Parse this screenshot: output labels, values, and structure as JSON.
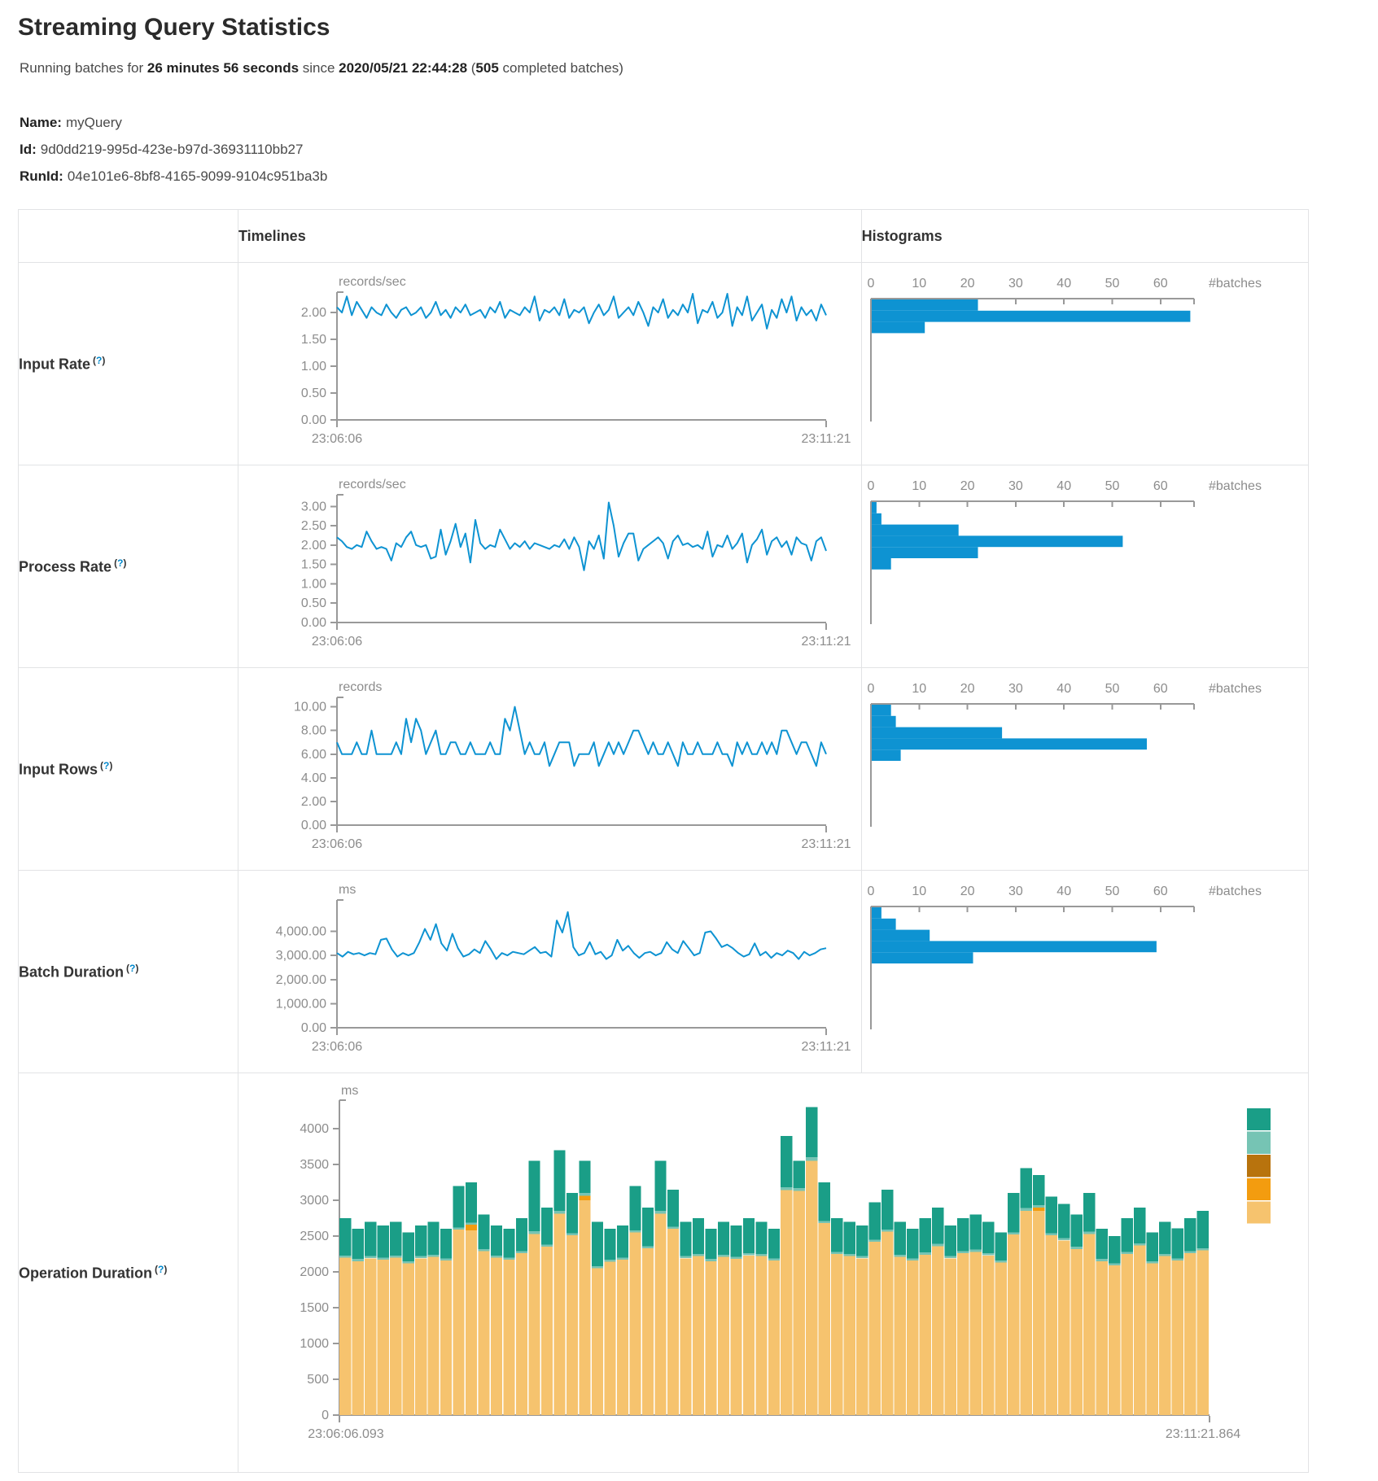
{
  "page": {
    "title": "Streaming Query Statistics"
  },
  "subtitle": {
    "prefix": "Running batches for ",
    "duration": "26 minutes 56 seconds",
    "mid": " since ",
    "timestamp": "2020/05/21 22:44:28",
    "open": " (",
    "count": "505",
    "suffix": " completed batches)"
  },
  "query": {
    "name_label": "Name:",
    "name": "myQuery",
    "id_label": "Id:",
    "id": "9d0dd219-995d-423e-b97d-36931110bb27",
    "run_label": "RunId:",
    "run_id": "04e101e6-8bf8-4165-9099-9104c951ba3b"
  },
  "ui": {
    "help_open": "(",
    "help_q": "?",
    "help_close": ")"
  },
  "table": {
    "timelines_header": "Timelines",
    "histograms_header": "Histograms"
  },
  "colors": {
    "line": "#0e93d2",
    "axis": "#999999",
    "tick_label": "#8c8c8c",
    "green": "#1a9e87",
    "light_teal": "#76c4b4",
    "dark_orange": "#b8730d",
    "orange": "#f39c0f",
    "tan": "#f6c36e"
  },
  "chart_data": [
    {
      "type": "line",
      "row_label": "Input Rate",
      "unit": "records/sec",
      "x_start": "23:06:06",
      "x_end": "23:11:21",
      "y_ticks": [
        0,
        0.5,
        1,
        1.5,
        2
      ],
      "y_tick_labels": [
        "0.00",
        "0.50",
        "1.00",
        "1.50",
        "2.00"
      ],
      "y_max": 2.38,
      "values": [
        2.1,
        2.0,
        2.3,
        1.95,
        2.2,
        2.05,
        1.9,
        2.1,
        2.0,
        1.95,
        2.15,
        2.0,
        1.9,
        2.05,
        2.1,
        1.95,
        2.0,
        2.1,
        1.9,
        2.0,
        2.2,
        1.95,
        2.05,
        1.9,
        2.1,
        2.0,
        2.15,
        1.95,
        2.0,
        2.05,
        1.9,
        2.1,
        2.0,
        2.2,
        1.9,
        2.05,
        2.0,
        1.95,
        2.1,
        2.0,
        2.3,
        1.85,
        2.05,
        2.0,
        2.1,
        1.95,
        2.25,
        1.9,
        2.05,
        2.0,
        2.1,
        1.8,
        2.0,
        2.15,
        1.95,
        2.05,
        2.3,
        1.9,
        2.0,
        2.1,
        1.95,
        2.2,
        2.0,
        1.75,
        2.1,
        2.0,
        2.25,
        1.9,
        2.05,
        1.95,
        2.15,
        2.0,
        2.35,
        1.8,
        2.05,
        2.0,
        2.2,
        1.9,
        2.0,
        2.35,
        1.75,
        2.1,
        1.95,
        2.3,
        1.85,
        2.0,
        2.15,
        1.7,
        2.05,
        1.9,
        2.25,
        2.0,
        2.3,
        1.85,
        2.1,
        1.95,
        2.05,
        1.85,
        2.15,
        1.95
      ],
      "histogram": {
        "ticks": [
          0,
          10,
          20,
          30,
          40,
          50,
          60
        ],
        "axis_label": "#batches",
        "bars": [
          22,
          66,
          11
        ]
      }
    },
    {
      "type": "line",
      "row_label": "Process Rate",
      "unit": "records/sec",
      "x_start": "23:06:06",
      "x_end": "23:11:21",
      "y_ticks": [
        0,
        0.5,
        1,
        1.5,
        2,
        2.5,
        3
      ],
      "y_tick_labels": [
        "0.00",
        "0.50",
        "1.00",
        "1.50",
        "2.00",
        "2.50",
        "3.00"
      ],
      "y_max": 3.3,
      "values": [
        2.2,
        2.1,
        1.95,
        1.9,
        2.0,
        1.95,
        2.35,
        2.1,
        1.9,
        1.95,
        1.9,
        1.6,
        2.05,
        1.95,
        2.2,
        2.35,
        2.0,
        1.95,
        2.0,
        1.65,
        1.7,
        2.4,
        1.75,
        2.1,
        2.55,
        1.95,
        2.3,
        1.55,
        2.65,
        2.05,
        1.9,
        2.0,
        1.95,
        2.4,
        2.15,
        1.9,
        2.05,
        1.95,
        2.1,
        1.9,
        2.05,
        2.0,
        1.95,
        1.9,
        2.0,
        1.95,
        2.15,
        1.9,
        2.2,
        1.95,
        1.35,
        2.1,
        1.9,
        2.25,
        1.65,
        3.1,
        2.5,
        1.7,
        2.05,
        2.3,
        2.3,
        1.6,
        1.9,
        2.0,
        2.1,
        2.2,
        2.05,
        1.65,
        2.1,
        2.25,
        2.0,
        2.05,
        1.95,
        2.0,
        1.9,
        2.35,
        1.7,
        2.0,
        1.95,
        2.25,
        1.9,
        2.05,
        2.3,
        1.55,
        2.0,
        2.15,
        2.4,
        1.75,
        2.1,
        2.2,
        1.95,
        2.1,
        1.75,
        2.2,
        2.05,
        2.0,
        1.6,
        2.1,
        2.2,
        1.85
      ],
      "histogram": {
        "ticks": [
          0,
          10,
          20,
          30,
          40,
          50,
          60
        ],
        "axis_label": "#batches",
        "bars": [
          1,
          2,
          18,
          52,
          22,
          4
        ]
      }
    },
    {
      "type": "line",
      "row_label": "Input Rows",
      "unit": "records",
      "x_start": "23:06:06",
      "x_end": "23:11:21",
      "y_ticks": [
        0,
        2,
        4,
        6,
        8,
        10
      ],
      "y_tick_labels": [
        "0.00",
        "2.00",
        "4.00",
        "6.00",
        "8.00",
        "10.00"
      ],
      "y_max": 10.8,
      "values": [
        7,
        6,
        6,
        6,
        7,
        6,
        6,
        8,
        6,
        6,
        6,
        6,
        7,
        6,
        9,
        7,
        9,
        8,
        6,
        7,
        8,
        6,
        6,
        7,
        7,
        6,
        6,
        7,
        6,
        6,
        6,
        7,
        6,
        6,
        9,
        8,
        10,
        8,
        6,
        7,
        6,
        6,
        7,
        5,
        6,
        7,
        7,
        7,
        5,
        6,
        6,
        6,
        7,
        5,
        6,
        7,
        6,
        7,
        6,
        7,
        8,
        8,
        7,
        6,
        7,
        6,
        6,
        7,
        6,
        5,
        7,
        6,
        6,
        7,
        6,
        6,
        6,
        7,
        6,
        6,
        5,
        7,
        6,
        7,
        6,
        6,
        7,
        6,
        7,
        6,
        8,
        8,
        7,
        6,
        7,
        7,
        6,
        5,
        7,
        6
      ],
      "histogram": {
        "ticks": [
          0,
          10,
          20,
          30,
          40,
          50,
          60
        ],
        "axis_label": "#batches",
        "bars": [
          4,
          5,
          27,
          57,
          6
        ]
      }
    },
    {
      "type": "line",
      "row_label": "Batch Duration",
      "unit": "ms",
      "x_start": "23:06:06",
      "x_end": "23:11:21",
      "y_ticks": [
        0,
        1000,
        2000,
        3000,
        4000
      ],
      "y_tick_labels": [
        "0.00",
        "1,000.00",
        "2,000.00",
        "3,000.00",
        "4,000.00"
      ],
      "y_max": 5300,
      "values": [
        3100,
        2950,
        3150,
        3050,
        3100,
        3000,
        3100,
        3050,
        3650,
        3700,
        3250,
        2950,
        3100,
        3000,
        3100,
        3550,
        4100,
        3650,
        4300,
        3500,
        3200,
        3900,
        3300,
        2950,
        3050,
        3250,
        3100,
        3600,
        3250,
        2850,
        3100,
        3000,
        3150,
        3100,
        3050,
        3200,
        3350,
        3100,
        3150,
        2950,
        4450,
        3950,
        4800,
        3350,
        3000,
        3100,
        3550,
        3050,
        3150,
        2850,
        3000,
        3650,
        3200,
        3400,
        3100,
        2900,
        3100,
        3150,
        3000,
        3100,
        3550,
        3250,
        3100,
        3600,
        3300,
        3000,
        3100,
        3950,
        4000,
        3700,
        3350,
        3450,
        3300,
        3100,
        2950,
        3050,
        3500,
        3000,
        3150,
        2900,
        3100,
        3000,
        3200,
        3100,
        2850,
        3150,
        3000,
        3100,
        3250,
        3300
      ],
      "histogram": {
        "ticks": [
          0,
          10,
          20,
          30,
          40,
          50,
          60
        ],
        "axis_label": "#batches",
        "bars": [
          2,
          5,
          12,
          59,
          21
        ]
      }
    },
    {
      "type": "stacked_bar",
      "row_label": "Operation Duration",
      "unit": "ms",
      "x_start": "23:06:06.093",
      "x_end": "23:11:21.864",
      "y_ticks": [
        0,
        500,
        1000,
        1500,
        2000,
        2500,
        3000,
        3500,
        4000
      ],
      "y_tick_labels": [
        "0",
        "500",
        "1000",
        "1500",
        "2000",
        "2500",
        "3000",
        "3500",
        "4000"
      ],
      "y_max": 4400,
      "legend_colors": [
        "#1a9e87",
        "#76c4b4",
        "#b8730d",
        "#f39c0f",
        "#f6c36e"
      ],
      "series": [
        {
          "color": "#f6c36e",
          "values": [
            2200,
            2150,
            2190,
            2170,
            2200,
            2120,
            2190,
            2210,
            2160,
            2590,
            2580,
            2290,
            2200,
            2170,
            2260,
            2530,
            2350,
            2810,
            2510,
            3000,
            2050,
            2140,
            2170,
            2550,
            2330,
            2810,
            2600,
            2190,
            2220,
            2150,
            2210,
            2180,
            2230,
            2220,
            2160,
            3140,
            3130,
            3550,
            2680,
            2250,
            2220,
            2190,
            2420,
            2560,
            2210,
            2160,
            2240,
            2360,
            2190,
            2260,
            2280,
            2230,
            2130,
            2520,
            2850,
            2850,
            2510,
            2440,
            2320,
            2530,
            2150,
            2090,
            2250,
            2370,
            2120,
            2220,
            2160,
            2260,
            2300
          ]
        },
        {
          "color": "#f39c0f",
          "values": [
            0,
            0,
            0,
            0,
            0,
            0,
            0,
            0,
            0,
            0,
            80,
            0,
            0,
            0,
            0,
            0,
            0,
            0,
            0,
            60,
            0,
            0,
            0,
            0,
            0,
            0,
            0,
            0,
            0,
            0,
            0,
            0,
            0,
            0,
            0,
            0,
            0,
            0,
            0,
            0,
            0,
            0,
            0,
            0,
            0,
            0,
            0,
            0,
            0,
            0,
            0,
            0,
            0,
            0,
            0,
            50,
            0,
            0,
            0,
            0,
            0,
            0,
            0,
            0,
            0,
            0,
            0,
            0,
            0
          ]
        },
        {
          "color": "#76c4b4",
          "values": [
            30,
            30,
            30,
            30,
            30,
            30,
            30,
            30,
            30,
            30,
            30,
            30,
            30,
            30,
            30,
            40,
            30,
            40,
            30,
            40,
            30,
            30,
            30,
            30,
            30,
            40,
            30,
            30,
            30,
            30,
            30,
            30,
            30,
            30,
            30,
            40,
            40,
            50,
            30,
            30,
            30,
            30,
            30,
            30,
            30,
            30,
            30,
            30,
            30,
            30,
            30,
            30,
            30,
            30,
            40,
            30,
            30,
            30,
            30,
            30,
            30,
            30,
            30,
            30,
            30,
            30,
            30,
            30,
            30
          ]
        },
        {
          "color": "#1a9e87",
          "values": [
            520,
            420,
            480,
            450,
            470,
            400,
            430,
            460,
            410,
            580,
            560,
            480,
            420,
            400,
            460,
            980,
            520,
            850,
            560,
            450,
            620,
            430,
            450,
            620,
            540,
            700,
            520,
            480,
            500,
            420,
            460,
            440,
            490,
            450,
            410,
            720,
            380,
            700,
            540,
            470,
            450,
            430,
            520,
            560,
            460,
            410,
            480,
            510,
            430,
            460,
            490,
            440,
            390,
            550,
            560,
            420,
            510,
            480,
            450,
            540,
            420,
            380,
            470,
            500,
            400,
            450,
            420,
            460,
            520
          ]
        }
      ]
    }
  ]
}
